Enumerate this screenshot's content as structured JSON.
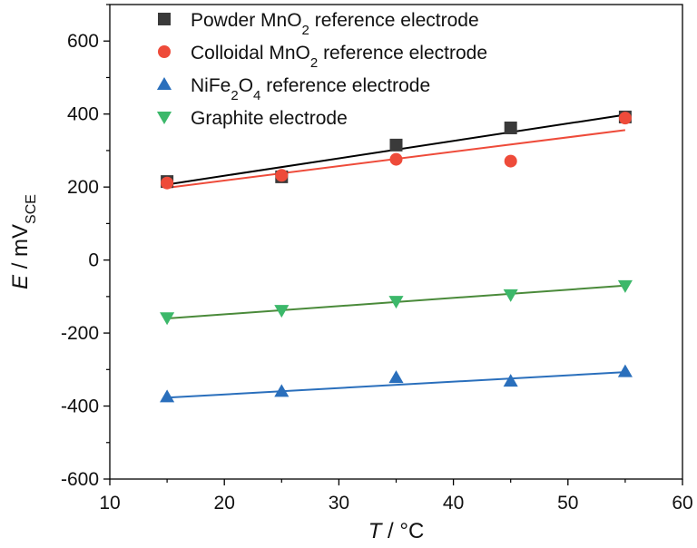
{
  "chart_data": {
    "type": "scatter",
    "xlabel": {
      "sym": "T",
      "unit": " / °C"
    },
    "ylabel": {
      "sym": "E",
      "unit": " / mV",
      "sub": "SCE"
    },
    "xlim": [
      10,
      60
    ],
    "ylim": [
      -600,
      700
    ],
    "xticks": [
      10,
      20,
      30,
      40,
      50,
      60
    ],
    "yticks": [
      -600,
      -400,
      -200,
      0,
      200,
      400,
      600
    ],
    "x": [
      15,
      25,
      35,
      45,
      55
    ],
    "grid": false,
    "legend_position": "top-left",
    "series": [
      {
        "legend_parts": [
          [
            "Powder MnO",
            ""
          ],
          [
            "2",
            "sub"
          ],
          [
            " reference electrode",
            ""
          ]
        ],
        "marker": "square",
        "color": "#3a3a3a",
        "line_color": "#000000",
        "values": [
          215,
          228,
          315,
          362,
          392
        ],
        "fit": [
          207,
          398
        ]
      },
      {
        "legend_parts": [
          [
            "Colloidal MnO",
            ""
          ],
          [
            "2",
            "sub"
          ],
          [
            " reference electrode",
            ""
          ]
        ],
        "marker": "circle",
        "color": "#ee4b3a",
        "line_color": "#ee4b3a",
        "values": [
          211,
          232,
          276,
          271,
          389
        ],
        "fit": [
          198,
          356
        ]
      },
      {
        "legend_parts": [
          [
            "NiFe",
            ""
          ],
          [
            "2",
            "sub"
          ],
          [
            "O",
            ""
          ],
          [
            "4",
            "sub"
          ],
          [
            " reference electrode",
            ""
          ]
        ],
        "marker": "triangle-up",
        "color": "#2a6fbc",
        "line_color": "#2a6fbc",
        "values": [
          -375,
          -360,
          -322,
          -332,
          -306
        ],
        "fit": [
          -377,
          -307
        ]
      },
      {
        "legend_parts": [
          [
            "Graphite electrode",
            ""
          ]
        ],
        "marker": "triangle-down",
        "color": "#3cb86a",
        "line_color": "#4a8a3a",
        "values": [
          -158,
          -138,
          -113,
          -95,
          -70
        ],
        "fit": [
          -160,
          -70
        ]
      }
    ]
  }
}
